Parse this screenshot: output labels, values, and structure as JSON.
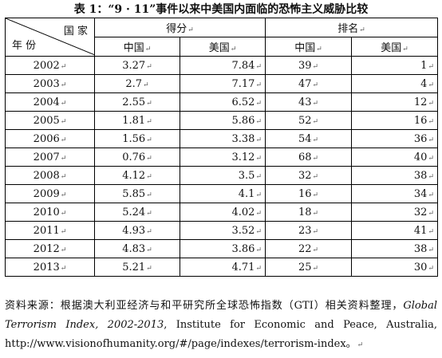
{
  "title": "表 1：“9 · 11”事件以来中美国内面临的恐怖主义威胁比较",
  "header": {
    "corner_top": "国  家",
    "corner_bottom": "年  份",
    "group_score": "得分",
    "group_rank": "排名",
    "sub_china_score": "中国",
    "sub_us_score": "美国",
    "sub_china_rank": "中国",
    "sub_us_rank": "美国"
  },
  "chart_data": {
    "type": "table",
    "columns": [
      "年份",
      "得分·中国",
      "得分·美国",
      "排名·中国",
      "排名·美国"
    ],
    "rows": [
      {
        "year": "2002",
        "cn_score": "3.27",
        "us_score": "7.84",
        "cn_rank": "39",
        "us_rank": "1"
      },
      {
        "year": "2003",
        "cn_score": "2.7",
        "us_score": "7.17",
        "cn_rank": "47",
        "us_rank": "4"
      },
      {
        "year": "2004",
        "cn_score": "2.55",
        "us_score": "6.52",
        "cn_rank": "43",
        "us_rank": "12"
      },
      {
        "year": "2005",
        "cn_score": "1.81",
        "us_score": "5.86",
        "cn_rank": "52",
        "us_rank": "16"
      },
      {
        "year": "2006",
        "cn_score": "1.56",
        "us_score": "3.38",
        "cn_rank": "54",
        "us_rank": "36"
      },
      {
        "year": "2007",
        "cn_score": "0.76",
        "us_score": "3.12",
        "cn_rank": "68",
        "us_rank": "40"
      },
      {
        "year": "2008",
        "cn_score": "4.12",
        "us_score": "3.5",
        "cn_rank": "32",
        "us_rank": "38"
      },
      {
        "year": "2009",
        "cn_score": "5.85",
        "us_score": "4.1",
        "cn_rank": "16",
        "us_rank": "34"
      },
      {
        "year": "2010",
        "cn_score": "5.24",
        "us_score": "4.02",
        "cn_rank": "18",
        "us_rank": "32"
      },
      {
        "year": "2011",
        "cn_score": "4.93",
        "us_score": "3.52",
        "cn_rank": "23",
        "us_rank": "41"
      },
      {
        "year": "2012",
        "cn_score": "4.83",
        "us_score": "3.86",
        "cn_rank": "22",
        "us_rank": "38"
      },
      {
        "year": "2013",
        "cn_score": "5.21",
        "us_score": "4.71",
        "cn_rank": "25",
        "us_rank": "30"
      }
    ]
  },
  "note": {
    "prefix": "资料来源：根据澳大利亚经济与和平研究所全球恐怖指数（GTI）相关资料整理，",
    "italic": "Global Terrorism Index, 2002-2013",
    "suffix": ", Institute for Economic and Peace, Australia, http://www.visionofhumanity.org/#/page/indexes/terrorism-index。"
  }
}
